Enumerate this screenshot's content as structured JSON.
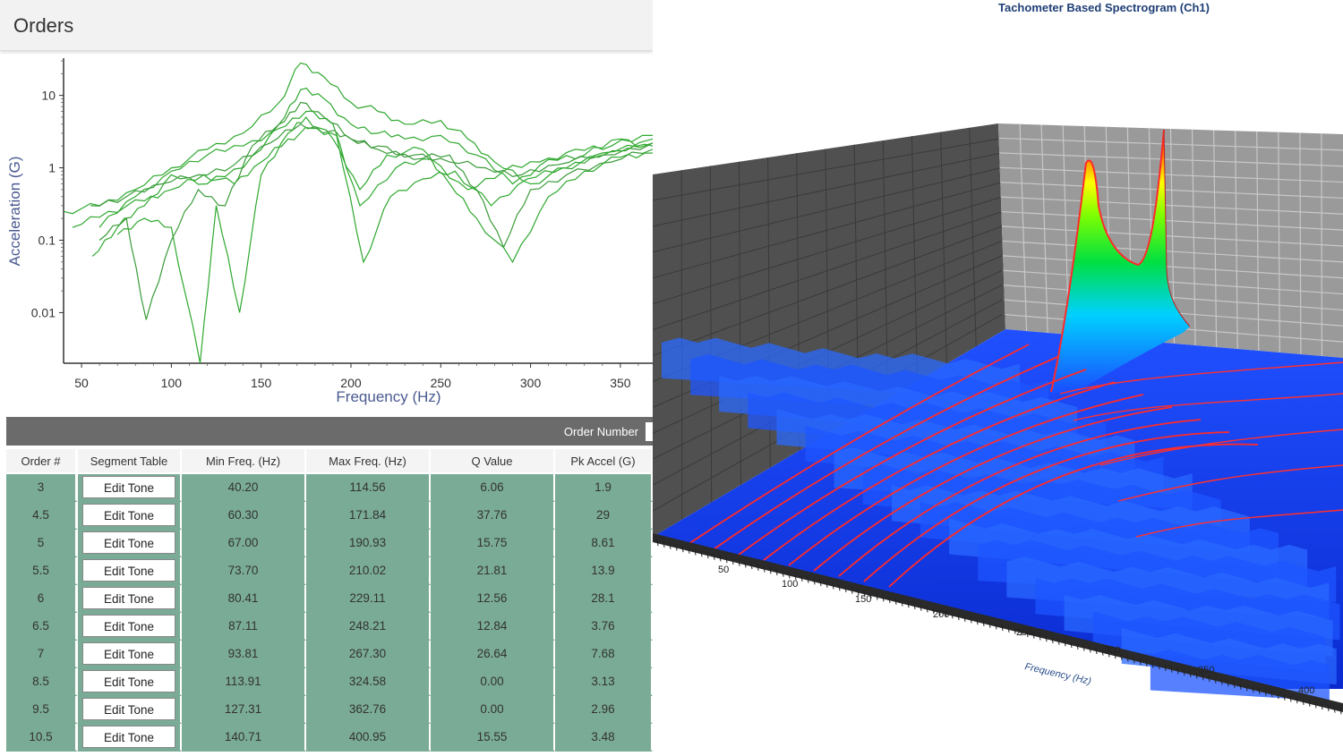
{
  "header": {
    "title": "Orders"
  },
  "orders_chart": {
    "chart_data": {
      "type": "line",
      "title": "",
      "xlabel": "Frequency (Hz)",
      "ylabel": "Acceleration (G)",
      "xlim": [
        40,
        368
      ],
      "ylim": [
        0.002,
        30
      ],
      "yscale": "log",
      "x_ticks": [
        "50",
        "100",
        "150",
        "200",
        "250",
        "300",
        "350"
      ],
      "x_tick_values": [
        50,
        100,
        150,
        200,
        250,
        300,
        350
      ],
      "y_ticks": [
        "10",
        "1",
        "0.1",
        "0.01"
      ],
      "y_tick_values": [
        10,
        1,
        0.1,
        0.01
      ],
      "grid": false,
      "color": "#2ea82e",
      "series": [
        {
          "x": [
            40,
            60,
            80,
            100,
            120,
            140,
            160,
            172,
            185,
            200,
            215,
            230,
            250,
            265,
            280,
            300,
            320,
            340,
            368
          ],
          "y": [
            0.25,
            0.3,
            0.5,
            1.0,
            1.8,
            3.0,
            8.0,
            28,
            18,
            8,
            6,
            4,
            4.5,
            2.5,
            1.2,
            0.6,
            1.0,
            1.6,
            2.2
          ]
        },
        {
          "x": [
            56,
            70,
            85,
            100,
            120,
            140,
            160,
            172,
            185,
            200,
            215,
            230,
            250,
            270,
            290,
            310,
            330,
            350,
            368
          ],
          "y": [
            0.06,
            0.15,
            0.3,
            0.8,
            0.6,
            1.0,
            4,
            12,
            9,
            4,
            3,
            2.5,
            2.8,
            1.5,
            0.6,
            1.3,
            1.5,
            2.5,
            2.0
          ]
        },
        {
          "x": [
            60,
            75,
            86,
            100,
            115,
            130,
            145,
            160,
            172,
            185,
            200,
            215,
            235,
            255,
            270,
            285,
            300,
            320,
            345,
            368
          ],
          "y": [
            0.1,
            0.2,
            0.008,
            0.1,
            0.5,
            0.3,
            2,
            4,
            8,
            5,
            2.5,
            2.0,
            1.3,
            1.5,
            0.5,
            0.08,
            0.5,
            0.8,
            1.2,
            1.8
          ]
        },
        {
          "x": [
            70,
            85,
            100,
            116,
            125,
            138,
            150,
            165,
            175,
            190,
            205,
            220,
            240,
            255,
            270,
            290,
            310,
            330,
            350,
            368
          ],
          "y": [
            0.12,
            0.2,
            0.15,
            0.002,
            0.3,
            0.01,
            0.8,
            3,
            5,
            2.5,
            0.5,
            1.5,
            1.8,
            0.6,
            0.2,
            0.05,
            0.4,
            0.9,
            1.4,
            1.6
          ]
        },
        {
          "x": [
            60,
            80,
            100,
            120,
            140,
            160,
            175,
            190,
            205,
            225,
            245,
            265,
            285,
            305,
            325,
            345,
            368
          ],
          "y": [
            0.15,
            0.4,
            0.9,
            1.5,
            2.0,
            3.5,
            6,
            4,
            0.3,
            1.0,
            1.3,
            0.5,
            0.9,
            1.2,
            1.8,
            2.0,
            2.8
          ]
        },
        {
          "x": [
            55,
            75,
            95,
            115,
            135,
            155,
            172,
            188,
            200,
            215,
            235,
            255,
            275,
            295,
            315,
            340,
            368
          ],
          "y": [
            0.3,
            0.4,
            0.6,
            0.8,
            1.1,
            2.2,
            4,
            3.2,
            2.5,
            1.8,
            1.5,
            1.2,
            1.0,
            0.8,
            1.1,
            1.5,
            2.2
          ]
        },
        {
          "x": [
            45,
            65,
            85,
            100,
            118,
            135,
            150,
            165,
            178,
            192,
            207,
            222,
            240,
            258,
            278,
            298,
            318,
            338,
            368
          ],
          "y": [
            0.15,
            0.25,
            0.35,
            0.5,
            0.8,
            0.6,
            1.2,
            2.5,
            3.5,
            2.8,
            0.05,
            0.4,
            0.7,
            0.9,
            0.3,
            0.7,
            1.0,
            1.4,
            2.5
          ]
        }
      ]
    }
  },
  "toolbar": {
    "order_number_label": "Order Number"
  },
  "table": {
    "columns": [
      "Order #",
      "Segment Table",
      "Min Freq. (Hz)",
      "Max Freq. (Hz)",
      "Q Value",
      "Pk Accel (G)"
    ],
    "rows": [
      {
        "order": "3",
        "button": "Edit Tone",
        "min_freq": "40.20",
        "max_freq": "114.56",
        "q": "6.06",
        "pk": "1.9"
      },
      {
        "order": "4.5",
        "button": "Edit Tone",
        "min_freq": "60.30",
        "max_freq": "171.84",
        "q": "37.76",
        "pk": "29"
      },
      {
        "order": "5",
        "button": "Edit Tone",
        "min_freq": "67.00",
        "max_freq": "190.93",
        "q": "15.75",
        "pk": "8.61"
      },
      {
        "order": "5.5",
        "button": "Edit Tone",
        "min_freq": "73.70",
        "max_freq": "210.02",
        "q": "21.81",
        "pk": "13.9"
      },
      {
        "order": "6",
        "button": "Edit Tone",
        "min_freq": "80.41",
        "max_freq": "229.11",
        "q": "12.56",
        "pk": "28.1"
      },
      {
        "order": "6.5",
        "button": "Edit Tone",
        "min_freq": "87.11",
        "max_freq": "248.21",
        "q": "12.84",
        "pk": "3.76"
      },
      {
        "order": "7",
        "button": "Edit Tone",
        "min_freq": "93.81",
        "max_freq": "267.30",
        "q": "26.64",
        "pk": "7.68"
      },
      {
        "order": "8.5",
        "button": "Edit Tone",
        "min_freq": "113.91",
        "max_freq": "324.58",
        "q": "0.00",
        "pk": "3.13"
      },
      {
        "order": "9.5",
        "button": "Edit Tone",
        "min_freq": "127.31",
        "max_freq": "362.76",
        "q": "0.00",
        "pk": "2.96"
      },
      {
        "order": "10.5",
        "button": "Edit Tone",
        "min_freq": "140.71",
        "max_freq": "400.95",
        "q": "15.55",
        "pk": "3.48"
      }
    ]
  },
  "spectrogram": {
    "title": "Tachometer Based Spectrogram (Ch1)",
    "chart_data": {
      "type": "surface",
      "title": "Tachometer Based Spectrogram (Ch1)",
      "xlabel": "Frequency (Hz)",
      "x_ticks": [
        "50",
        "100",
        "150",
        "200",
        "250",
        "300",
        "350",
        "400"
      ],
      "x_tick_values": [
        50,
        100,
        150,
        200,
        250,
        300,
        350,
        400
      ],
      "colormap": [
        "#0000ff",
        "#00c8ff",
        "#00ff00",
        "#ffff00",
        "#ff0000"
      ],
      "order_line_color": "#ff2020",
      "floor_color": "#1238e6",
      "wall_color": "#4a4a4a"
    }
  }
}
